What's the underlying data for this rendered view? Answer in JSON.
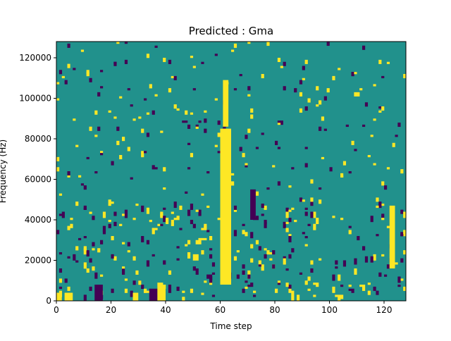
{
  "chart_data": {
    "type": "heatmap",
    "title": "Predicted : Gma",
    "xlabel": "Time step",
    "ylabel": "Frequency (Hz)",
    "xlim": [
      0,
      128
    ],
    "ylim": [
      0,
      128000
    ],
    "xticks": [
      0,
      20,
      40,
      60,
      80,
      100,
      120
    ],
    "yticks": [
      0,
      20000,
      40000,
      60000,
      80000,
      100000,
      120000
    ],
    "grid": false,
    "colormap": "viridis",
    "colors": {
      "background": "#21918c",
      "high": "#fde725",
      "low": "#440154"
    },
    "seed": 7,
    "rects": [
      {
        "x0": 60,
        "x1": 64,
        "y0": 8000,
        "y1": 85000,
        "v": 1
      },
      {
        "x0": 61,
        "x1": 63,
        "y0": 86000,
        "y1": 109000,
        "v": 1
      },
      {
        "x0": 122,
        "x1": 124,
        "y0": 16000,
        "y1": 47000,
        "v": 1
      },
      {
        "x0": 14,
        "x1": 17,
        "y0": 0,
        "y1": 8000,
        "v": 0
      },
      {
        "x0": 34,
        "x1": 37,
        "y0": 0,
        "y1": 6000,
        "v": 0
      },
      {
        "x0": 71,
        "x1": 73,
        "y0": 40000,
        "y1": 55000,
        "v": 0
      },
      {
        "x0": 0,
        "x1": 2,
        "y0": 0,
        "y1": 4000,
        "v": 1
      },
      {
        "x0": 3,
        "x1": 6,
        "y0": 0,
        "y1": 4000,
        "v": 1
      },
      {
        "x0": 37,
        "x1": 40,
        "y0": 0,
        "y1": 8000,
        "v": 1
      },
      {
        "x0": 28,
        "x1": 30,
        "y0": 0,
        "y1": 4000,
        "v": 1
      }
    ]
  }
}
